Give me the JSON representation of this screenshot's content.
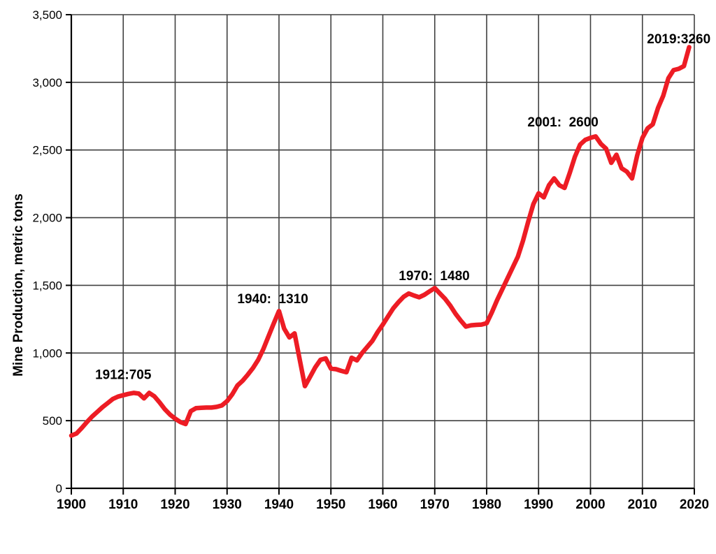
{
  "figure": {
    "background_color": "#ffffff",
    "text_color": "#000000"
  },
  "chart_data": {
    "type": "line",
    "title": "",
    "xlabel": "",
    "ylabel": "Mine Production, metric tons",
    "xlim": [
      1900,
      2020
    ],
    "ylim": [
      0,
      3500
    ],
    "grid": true,
    "legend": "none",
    "line_color": "#ed1c24",
    "line_width": 6.5,
    "grid_color": "#404040",
    "axis_color": "#000000",
    "x_tick_step": 10,
    "y_tick_step": 500,
    "x_tick_labels": [
      "1900",
      "1910",
      "1920",
      "1930",
      "1940",
      "1950",
      "1960",
      "1970",
      "1980",
      "1990",
      "2000",
      "2010",
      "2020"
    ],
    "y_tick_labels": [
      "0",
      "500",
      "1,000",
      "1,500",
      "2,000",
      "2,500",
      "3,000",
      "3,500"
    ],
    "series": [
      {
        "name": "Mine Production",
        "x_start": 1900,
        "x_step": 1,
        "values": [
          390,
          405,
          445,
          490,
          530,
          565,
          600,
          630,
          660,
          678,
          688,
          698,
          705,
          700,
          665,
          705,
          680,
          635,
          585,
          545,
          515,
          490,
          475,
          570,
          592,
          595,
          597,
          597,
          602,
          612,
          645,
          695,
          760,
          795,
          840,
          890,
          950,
          1030,
          1125,
          1220,
          1310,
          1180,
          1115,
          1145,
          950,
          755,
          825,
          895,
          950,
          960,
          885,
          880,
          868,
          858,
          965,
          945,
          1000,
          1045,
          1090,
          1155,
          1210,
          1270,
          1330,
          1375,
          1415,
          1440,
          1425,
          1412,
          1430,
          1455,
          1480,
          1440,
          1400,
          1350,
          1290,
          1240,
          1195,
          1205,
          1208,
          1210,
          1220,
          1300,
          1390,
          1470,
          1550,
          1630,
          1710,
          1830,
          1970,
          2100,
          2180,
          2150,
          2240,
          2290,
          2240,
          2220,
          2330,
          2450,
          2540,
          2575,
          2590,
          2600,
          2545,
          2510,
          2405,
          2465,
          2365,
          2340,
          2290,
          2460,
          2590,
          2660,
          2690,
          2810,
          2900,
          3030,
          3090,
          3100,
          3120,
          3260
        ]
      }
    ],
    "annotations": [
      {
        "text": "1912:705",
        "anchor_year": 1910.0,
        "anchor_value": 840
      },
      {
        "text": "1940:  1310",
        "anchor_year": 1938.8,
        "anchor_value": 1400
      },
      {
        "text": "1970:  1480",
        "anchor_year": 1969.9,
        "anchor_value": 1570
      },
      {
        "text": "2001:  2600",
        "anchor_year": 1994.7,
        "anchor_value": 2705
      },
      {
        "text": "2019:3260",
        "anchor_year": 2017.0,
        "anchor_value": 3320
      }
    ]
  }
}
